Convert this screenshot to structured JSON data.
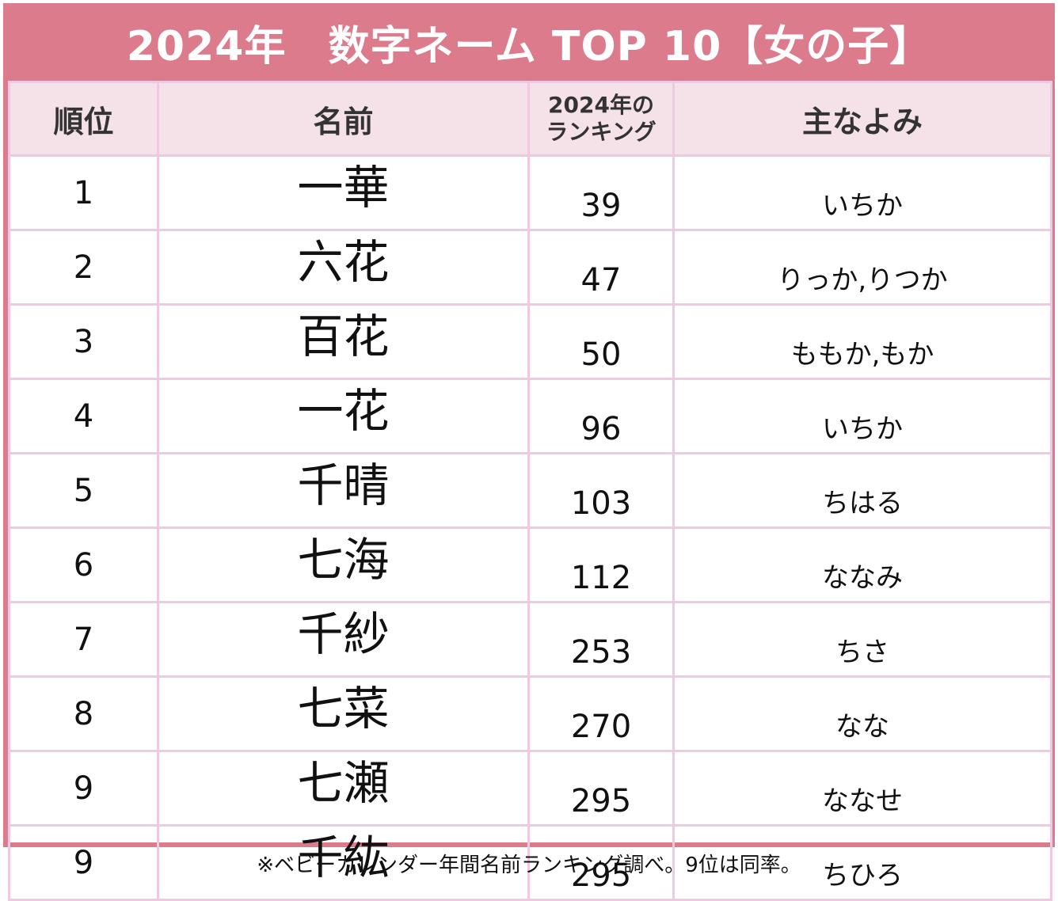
{
  "title": "2024年　数字ネーム TOP 10【女の子】",
  "headers": {
    "rank": "順位",
    "name": "名前",
    "ranking_line1": "2024年の",
    "ranking_line2": "ランキング",
    "reading": "主なよみ"
  },
  "rows": [
    {
      "rank": "1",
      "name": "一華",
      "ranking": "39",
      "reading": "いちか"
    },
    {
      "rank": "2",
      "name": "六花",
      "ranking": "47",
      "reading": "りっか,りつか"
    },
    {
      "rank": "3",
      "name": "百花",
      "ranking": "50",
      "reading": "ももか,もか"
    },
    {
      "rank": "4",
      "name": "一花",
      "ranking": "96",
      "reading": "いちか"
    },
    {
      "rank": "5",
      "name": "千晴",
      "ranking": "103",
      "reading": "ちはる"
    },
    {
      "rank": "6",
      "name": "七海",
      "ranking": "112",
      "reading": "ななみ"
    },
    {
      "rank": "7",
      "name": "千紗",
      "ranking": "253",
      "reading": "ちさ"
    },
    {
      "rank": "8",
      "name": "七菜",
      "ranking": "270",
      "reading": "なな"
    },
    {
      "rank": "9",
      "name": "七瀬",
      "ranking": "295",
      "reading": "ななせ"
    },
    {
      "rank": "9",
      "name": "千紘",
      "ranking": "295",
      "reading": "ちひろ"
    }
  ],
  "footnote": "※ベビーカレンダー年間名前ランキング調べ。9位は同率。",
  "colors": {
    "frame": "#db7b8c",
    "header_bg": "#f5e2e8",
    "grid": "#efc9e2"
  }
}
